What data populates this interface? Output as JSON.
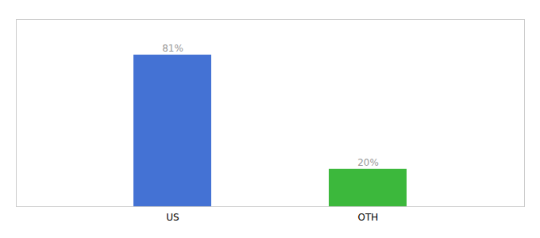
{
  "chart_data": {
    "type": "bar",
    "categories": [
      "US",
      "OTH"
    ],
    "values": [
      81,
      20
    ],
    "value_labels": [
      "81%",
      "20%"
    ],
    "colors": [
      "#4472d4",
      "#3cb83c"
    ],
    "ylim": [
      0,
      100
    ],
    "data_labels": true,
    "tick_labels": "x",
    "grid": false
  }
}
